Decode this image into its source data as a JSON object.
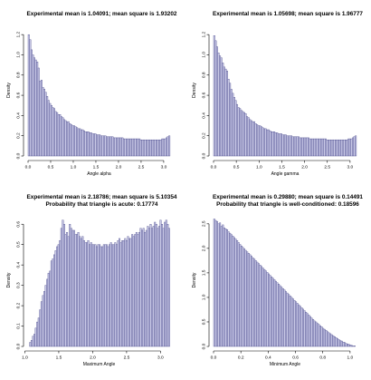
{
  "chart_data": [
    {
      "type": "bar",
      "title": [
        "Experimental mean is 1.04091; mean square is 1.93202"
      ],
      "xlabel": "Angle alpha",
      "ylabel": "Density",
      "xlim": [
        0,
        3.1416
      ],
      "ylim": [
        0,
        1.3
      ],
      "xticks": [
        "0.0",
        "0.5",
        "1.0",
        "1.5",
        "2.0",
        "2.5",
        "3.0"
      ],
      "yticks": [
        "0.0",
        "0.2",
        "0.4",
        "0.6",
        "0.8",
        "1.0",
        "1.2"
      ],
      "bin_width": 0.0314,
      "values": [
        1.2,
        1.15,
        1.05,
        1.0,
        0.97,
        0.95,
        0.93,
        0.87,
        0.74,
        0.75,
        0.68,
        0.66,
        0.63,
        0.59,
        0.55,
        0.52,
        0.5,
        0.48,
        0.47,
        0.44,
        0.43,
        0.41,
        0.41,
        0.39,
        0.38,
        0.36,
        0.35,
        0.34,
        0.34,
        0.32,
        0.31,
        0.3,
        0.3,
        0.29,
        0.28,
        0.27,
        0.27,
        0.26,
        0.26,
        0.25,
        0.24,
        0.24,
        0.24,
        0.23,
        0.23,
        0.22,
        0.22,
        0.22,
        0.21,
        0.21,
        0.21,
        0.2,
        0.2,
        0.2,
        0.2,
        0.19,
        0.19,
        0.19,
        0.19,
        0.19,
        0.18,
        0.18,
        0.18,
        0.18,
        0.18,
        0.18,
        0.18,
        0.17,
        0.17,
        0.17,
        0.17,
        0.17,
        0.17,
        0.17,
        0.17,
        0.17,
        0.17,
        0.17,
        0.17,
        0.16,
        0.16,
        0.16,
        0.16,
        0.16,
        0.16,
        0.16,
        0.16,
        0.16,
        0.16,
        0.16,
        0.16,
        0.16,
        0.16,
        0.16,
        0.17,
        0.17,
        0.17,
        0.18,
        0.19,
        0.2
      ]
    },
    {
      "type": "bar",
      "title": [
        "Experimental mean is 1.05698; mean square is 1.96777"
      ],
      "xlabel": "Angle gamma",
      "ylabel": "Density",
      "xlim": [
        0,
        3.1416
      ],
      "ylim": [
        0,
        1.3
      ],
      "xticks": [
        "0.0",
        "0.5",
        "1.0",
        "1.5",
        "2.0",
        "2.5",
        "3.0"
      ],
      "yticks": [
        "0.0",
        "0.2",
        "0.4",
        "0.6",
        "0.8",
        "1.0",
        "1.2"
      ],
      "bin_width": 0.0314,
      "values": [
        1.19,
        1.14,
        1.08,
        1.02,
        0.99,
        0.97,
        0.92,
        0.88,
        0.86,
        0.84,
        0.76,
        0.72,
        0.66,
        0.62,
        0.58,
        0.55,
        0.51,
        0.48,
        0.47,
        0.45,
        0.44,
        0.43,
        0.42,
        0.39,
        0.38,
        0.36,
        0.35,
        0.34,
        0.34,
        0.32,
        0.31,
        0.3,
        0.3,
        0.29,
        0.28,
        0.27,
        0.27,
        0.26,
        0.26,
        0.25,
        0.24,
        0.24,
        0.24,
        0.23,
        0.23,
        0.22,
        0.22,
        0.22,
        0.21,
        0.21,
        0.21,
        0.2,
        0.2,
        0.2,
        0.2,
        0.19,
        0.19,
        0.19,
        0.19,
        0.19,
        0.18,
        0.18,
        0.18,
        0.18,
        0.18,
        0.18,
        0.18,
        0.17,
        0.17,
        0.17,
        0.17,
        0.17,
        0.17,
        0.17,
        0.17,
        0.17,
        0.17,
        0.17,
        0.17,
        0.16,
        0.16,
        0.16,
        0.16,
        0.16,
        0.16,
        0.16,
        0.16,
        0.16,
        0.16,
        0.16,
        0.16,
        0.16,
        0.16,
        0.16,
        0.17,
        0.17,
        0.17,
        0.18,
        0.19,
        0.2
      ]
    },
    {
      "type": "bar",
      "title": [
        "Experimental mean is 2.18786; mean square is 5.10354",
        "Probability that triangle is acute: 0.17774"
      ],
      "xlabel": "Maximum Angle",
      "ylabel": "Density",
      "xlim": [
        1.0472,
        3.1416
      ],
      "ylim": [
        0,
        0.65
      ],
      "xticks": [
        "1.0",
        "1.5",
        "2.0",
        "2.5",
        "3.0"
      ],
      "yticks": [
        "0.0",
        "0.1",
        "0.2",
        "0.3",
        "0.4",
        "0.5",
        "0.6"
      ],
      "bin_width": 0.0209,
      "values": [
        0.0,
        0.02,
        0.03,
        0.05,
        0.06,
        0.09,
        0.12,
        0.14,
        0.18,
        0.22,
        0.25,
        0.27,
        0.3,
        0.33,
        0.36,
        0.37,
        0.42,
        0.43,
        0.45,
        0.47,
        0.49,
        0.5,
        0.52,
        0.58,
        0.62,
        0.6,
        0.55,
        0.56,
        0.54,
        0.6,
        0.58,
        0.57,
        0.57,
        0.55,
        0.55,
        0.56,
        0.54,
        0.53,
        0.54,
        0.52,
        0.51,
        0.51,
        0.52,
        0.5,
        0.51,
        0.5,
        0.5,
        0.5,
        0.49,
        0.5,
        0.5,
        0.49,
        0.49,
        0.5,
        0.5,
        0.5,
        0.49,
        0.5,
        0.51,
        0.5,
        0.5,
        0.51,
        0.5,
        0.52,
        0.53,
        0.51,
        0.52,
        0.52,
        0.53,
        0.52,
        0.54,
        0.53,
        0.53,
        0.55,
        0.54,
        0.55,
        0.56,
        0.55,
        0.56,
        0.58,
        0.57,
        0.58,
        0.56,
        0.57,
        0.59,
        0.58,
        0.6,
        0.58,
        0.59,
        0.61,
        0.6,
        0.58,
        0.59,
        0.62,
        0.6,
        0.58,
        0.61,
        0.62,
        0.6,
        0.58
      ]
    },
    {
      "type": "bar",
      "title": [
        "Experimental mean is 0.29880; mean square is 0.14491",
        "Probability that triangle is well-conditioned: 0.18596"
      ],
      "xlabel": "Minimum Angle",
      "ylabel": "Density",
      "xlim": [
        0,
        1.0472
      ],
      "ylim": [
        0,
        2.7
      ],
      "xticks": [
        "0.0",
        "0.2",
        "0.4",
        "0.6",
        "0.8",
        "1.0"
      ],
      "yticks": [
        "0.0",
        "0.5",
        "1.0",
        "1.5",
        "2.0",
        "2.5"
      ],
      "bin_width": 0.0105,
      "values": [
        2.6,
        2.57,
        2.55,
        2.5,
        2.52,
        2.45,
        2.48,
        2.42,
        2.4,
        2.38,
        2.34,
        2.31,
        2.28,
        2.25,
        2.22,
        2.19,
        2.16,
        2.12,
        2.08,
        2.05,
        2.02,
        1.99,
        1.96,
        1.93,
        1.9,
        1.87,
        1.84,
        1.81,
        1.78,
        1.75,
        1.72,
        1.69,
        1.66,
        1.63,
        1.6,
        1.57,
        1.54,
        1.51,
        1.48,
        1.45,
        1.42,
        1.39,
        1.36,
        1.33,
        1.3,
        1.27,
        1.24,
        1.21,
        1.18,
        1.15,
        1.12,
        1.09,
        1.06,
        1.03,
        1.0,
        0.97,
        0.94,
        0.91,
        0.88,
        0.85,
        0.82,
        0.79,
        0.76,
        0.73,
        0.7,
        0.67,
        0.64,
        0.61,
        0.58,
        0.55,
        0.52,
        0.5,
        0.47,
        0.45,
        0.42,
        0.4,
        0.37,
        0.35,
        0.33,
        0.3,
        0.28,
        0.26,
        0.24,
        0.22,
        0.2,
        0.18,
        0.16,
        0.14,
        0.12,
        0.11,
        0.09,
        0.08,
        0.06,
        0.05,
        0.04,
        0.03,
        0.02,
        0.01,
        0.01,
        0.0
      ]
    }
  ],
  "style": {
    "bar_fill": "#c8c8e6",
    "bar_stroke": "#3c3c82",
    "axis_color": "#000000"
  }
}
